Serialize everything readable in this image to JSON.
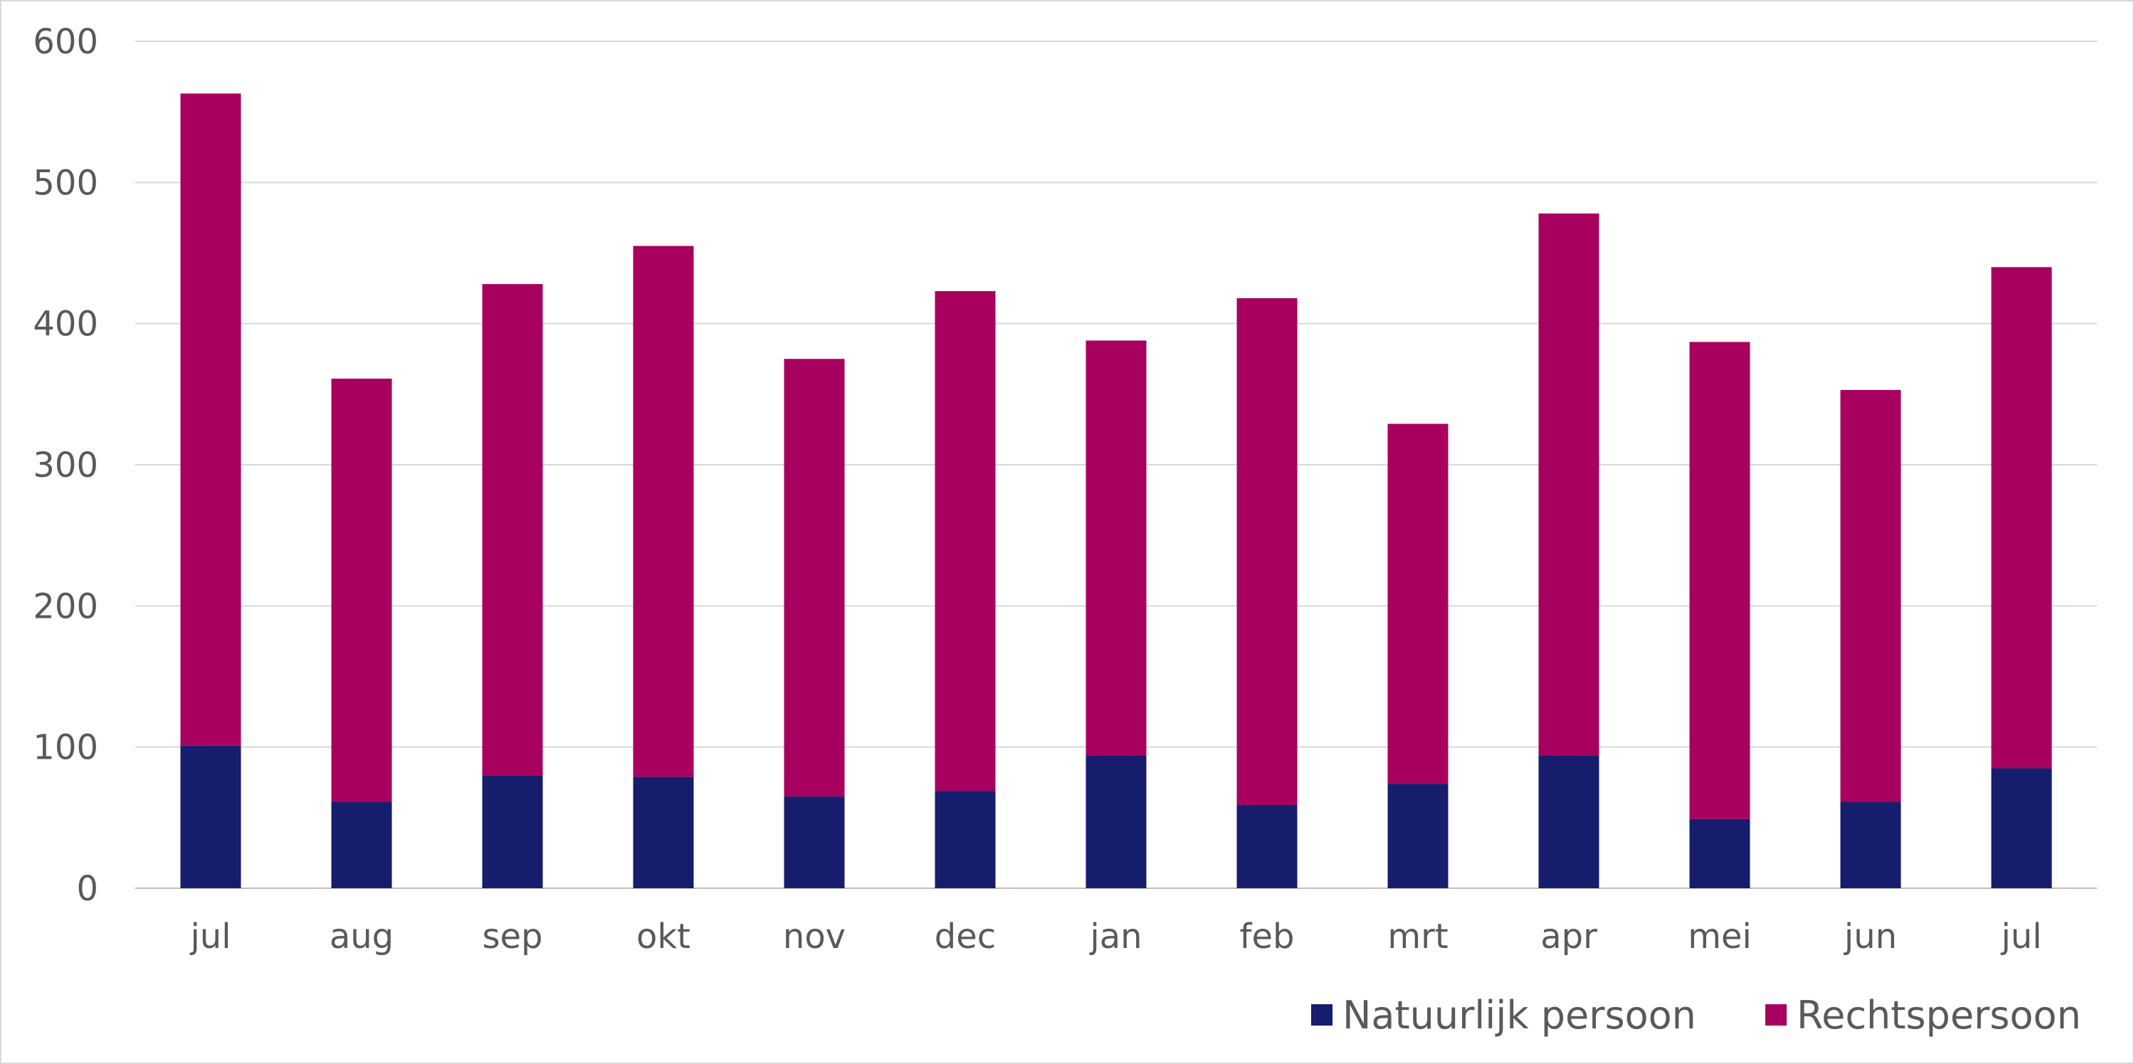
{
  "chart_data": {
    "type": "bar",
    "stacked": true,
    "categories": [
      "jul",
      "aug",
      "sep",
      "okt",
      "nov",
      "dec",
      "jan",
      "feb",
      "mrt",
      "apr",
      "mei",
      "jun",
      "jul"
    ],
    "series": [
      {
        "name": "Natuurlijk persoon",
        "color": "#161d6d",
        "values": [
          101,
          61,
          80,
          79,
          65,
          69,
          94,
          59,
          74,
          94,
          49,
          61,
          85
        ]
      },
      {
        "name": "Rechtspersoon",
        "color": "#a8005f",
        "values": [
          462,
          300,
          348,
          376,
          310,
          354,
          294,
          359,
          255,
          384,
          338,
          292,
          355
        ]
      }
    ],
    "title": "",
    "xlabel": "",
    "ylabel": "",
    "ylim": [
      0,
      600
    ],
    "yticks": [
      "0",
      "100",
      "200",
      "300",
      "400",
      "500",
      "600"
    ],
    "grid": true,
    "legend_position": "bottom-right"
  }
}
